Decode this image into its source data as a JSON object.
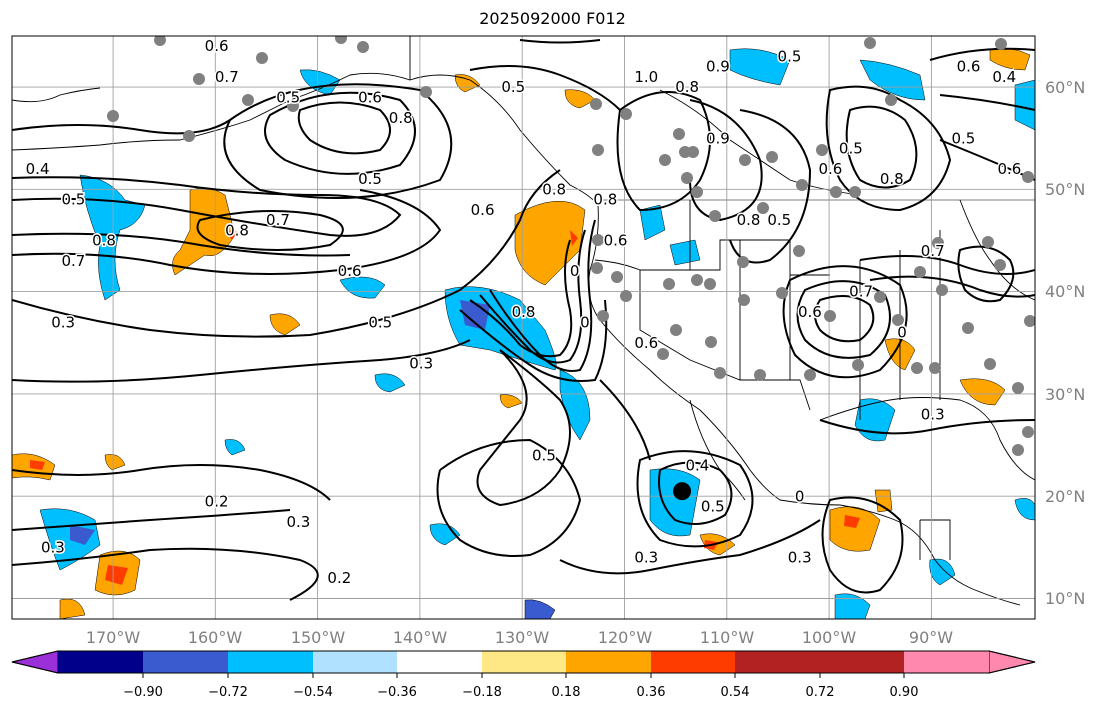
{
  "title": "2025092000 F012",
  "map": {
    "projection": "PlateCarree",
    "lon_range": [
      -180,
      -80
    ],
    "lat_range": [
      8,
      65
    ],
    "lat_ticks": [
      {
        "value": 10,
        "label": "10°N"
      },
      {
        "value": 20,
        "label": "20°N"
      },
      {
        "value": 30,
        "label": "30°N"
      },
      {
        "value": 40,
        "label": "40°N"
      },
      {
        "value": 50,
        "label": "50°N"
      },
      {
        "value": 60,
        "label": "60°N"
      }
    ],
    "lon_ticks": [
      {
        "value": -170,
        "label": "170°W"
      },
      {
        "value": -160,
        "label": "160°W"
      },
      {
        "value": -150,
        "label": "150°W"
      },
      {
        "value": -140,
        "label": "140°W"
      },
      {
        "value": -130,
        "label": "130°W"
      },
      {
        "value": -120,
        "label": "120°W"
      },
      {
        "value": -110,
        "label": "110°W"
      },
      {
        "value": -100,
        "label": "100°W"
      },
      {
        "value": -90,
        "label": "90°W"
      }
    ],
    "grid": true,
    "colors": {
      "gridline": "#a0a0a0",
      "tick_label": "#808080",
      "contour": "#000000",
      "station_dot": "#808080"
    },
    "contour_labels": [
      {
        "text": "0.6",
        "lon": -160,
        "lat": 64
      },
      {
        "text": "0.4",
        "lon": -177.5,
        "lat": 52
      },
      {
        "text": "0.5",
        "lon": -174,
        "lat": 49
      },
      {
        "text": "0.8",
        "lon": -171,
        "lat": 45
      },
      {
        "text": "0.7",
        "lon": -174,
        "lat": 43
      },
      {
        "text": "0.7",
        "lon": -159,
        "lat": 61
      },
      {
        "text": "0.5",
        "lon": -153,
        "lat": 59
      },
      {
        "text": "0.6",
        "lon": -145,
        "lat": 59
      },
      {
        "text": "0.8",
        "lon": -142,
        "lat": 57
      },
      {
        "text": "0.5",
        "lon": -145,
        "lat": 51
      },
      {
        "text": "0.8",
        "lon": -158,
        "lat": 46
      },
      {
        "text": "0.7",
        "lon": -154,
        "lat": 47
      },
      {
        "text": "0.6",
        "lon": -147,
        "lat": 42
      },
      {
        "text": "0.6",
        "lon": -134,
        "lat": 48
      },
      {
        "text": "0.5",
        "lon": -131,
        "lat": 60
      },
      {
        "text": "0.5",
        "lon": -144,
        "lat": 37
      },
      {
        "text": "0.3",
        "lon": -140,
        "lat": 33
      },
      {
        "text": "0.3",
        "lon": -175,
        "lat": 37
      },
      {
        "text": "0.8",
        "lon": -130,
        "lat": 38
      },
      {
        "text": "0",
        "lon": -124,
        "lat": 37
      },
      {
        "text": "0",
        "lon": -125,
        "lat": 42
      },
      {
        "text": "0.8",
        "lon": -122,
        "lat": 49
      },
      {
        "text": "0.8",
        "lon": -127,
        "lat": 50
      },
      {
        "text": "0.6",
        "lon": -121,
        "lat": 45
      },
      {
        "text": "0.8",
        "lon": -108,
        "lat": 47
      },
      {
        "text": "0.5",
        "lon": -105,
        "lat": 47
      },
      {
        "text": "1.0",
        "lon": -118,
        "lat": 61
      },
      {
        "text": "0.8",
        "lon": -114,
        "lat": 60
      },
      {
        "text": "0.9",
        "lon": -111,
        "lat": 62
      },
      {
        "text": "0.5",
        "lon": -104,
        "lat": 63
      },
      {
        "text": "0.5",
        "lon": -98,
        "lat": 54
      },
      {
        "text": "0.6",
        "lon": -100,
        "lat": 52
      },
      {
        "text": "0.8",
        "lon": -94,
        "lat": 51
      },
      {
        "text": "0.9",
        "lon": -111,
        "lat": 55
      },
      {
        "text": "0.7",
        "lon": -90,
        "lat": 44
      },
      {
        "text": "0.7",
        "lon": -97,
        "lat": 40
      },
      {
        "text": "0.6",
        "lon": -102,
        "lat": 38
      },
      {
        "text": "0",
        "lon": -93,
        "lat": 36
      },
      {
        "text": "0.3",
        "lon": -90,
        "lat": 28
      },
      {
        "text": "0.6",
        "lon": -86.5,
        "lat": 62
      },
      {
        "text": "0.4",
        "lon": -83,
        "lat": 61
      },
      {
        "text": "0.5",
        "lon": -87,
        "lat": 55
      },
      {
        "text": "0.6",
        "lon": -82.5,
        "lat": 52
      },
      {
        "text": "0.6",
        "lon": -118,
        "lat": 35
      },
      {
        "text": "0.5",
        "lon": -128,
        "lat": 24
      },
      {
        "text": "0.4",
        "lon": -113,
        "lat": 23
      },
      {
        "text": "0.5",
        "lon": -111.5,
        "lat": 19
      },
      {
        "text": "0.3",
        "lon": -118,
        "lat": 14
      },
      {
        "text": "0",
        "lon": -103,
        "lat": 20
      },
      {
        "text": "0.3",
        "lon": -103,
        "lat": 14
      },
      {
        "text": "0.2",
        "lon": -160,
        "lat": 19.5
      },
      {
        "text": "0.3",
        "lon": -152,
        "lat": 17.5
      },
      {
        "text": "0.2",
        "lon": -148,
        "lat": 12
      },
      {
        "text": "0.3",
        "lon": -176,
        "lat": 15
      }
    ],
    "marker": {
      "name": "storm-center",
      "lon": -114.5,
      "lat": 20.5
    }
  },
  "colorbar": {
    "bins": [
      "#9b30d8",
      "#00008b",
      "#3a5ad0",
      "#00bfff",
      "#b0e2ff",
      "#ffffff",
      "#fde885",
      "#ffa500",
      "#ff3c00",
      "#b22222",
      "#ff88ae"
    ],
    "tick_labels": [
      "−0.90",
      "−0.72",
      "−0.54",
      "−0.36",
      "−0.18",
      "0.18",
      "0.36",
      "0.54",
      "0.72",
      "0.90"
    ],
    "extend": "both"
  }
}
